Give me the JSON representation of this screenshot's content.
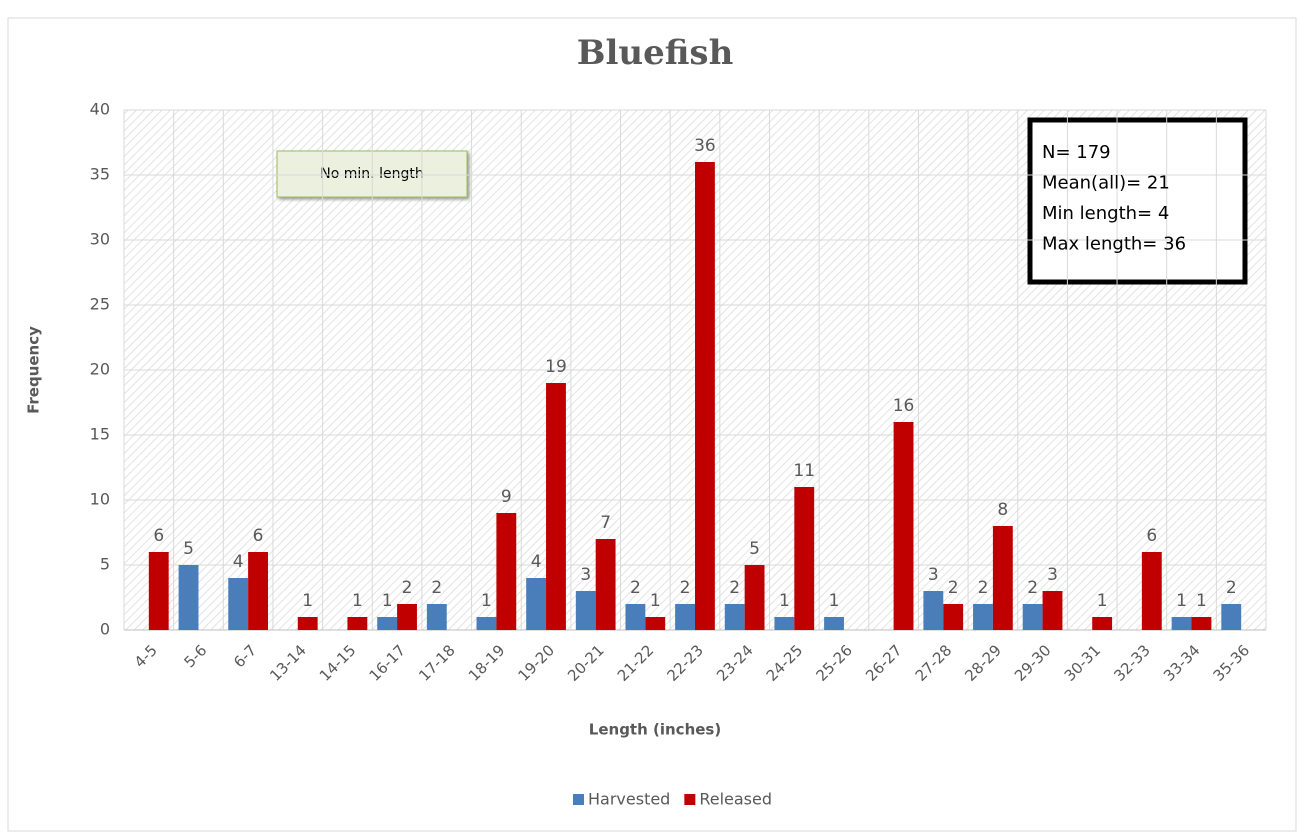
{
  "chart_data": {
    "type": "bar",
    "title": "Bluefish",
    "x_label": "Length (inches)",
    "y_label": "Frequency",
    "categories": [
      "4-5",
      "5-6",
      "6-7",
      "13-14",
      "14-15",
      "16-17",
      "17-18",
      "18-19",
      "19-20",
      "20-21",
      "21-22",
      "22-23",
      "23-24",
      "24-25",
      "25-26",
      "26-27",
      "27-28",
      "28-29",
      "29-30",
      "30-31",
      "32-33",
      "33-34",
      "35-36"
    ],
    "series": [
      {
        "name": "Harvested",
        "color": "#4a7ebb",
        "values": [
          null,
          5,
          4,
          null,
          null,
          1,
          2,
          1,
          4,
          3,
          2,
          2,
          2,
          1,
          1,
          null,
          3,
          2,
          2,
          null,
          null,
          1,
          2
        ]
      },
      {
        "name": "Released",
        "color": "#c00000",
        "values": [
          6,
          null,
          6,
          1,
          1,
          2,
          null,
          9,
          19,
          7,
          1,
          36,
          5,
          11,
          null,
          16,
          2,
          8,
          3,
          1,
          6,
          1,
          null
        ]
      }
    ],
    "ylim": [
      0,
      40
    ],
    "yticks": [
      0,
      5,
      10,
      15,
      20,
      25,
      30,
      35,
      40
    ],
    "grid": true,
    "legend": "bottom",
    "note": "No min. length",
    "stats": [
      "N= 179",
      "Mean(all)= 21",
      "Min length= 4",
      "Max length= 36"
    ]
  }
}
